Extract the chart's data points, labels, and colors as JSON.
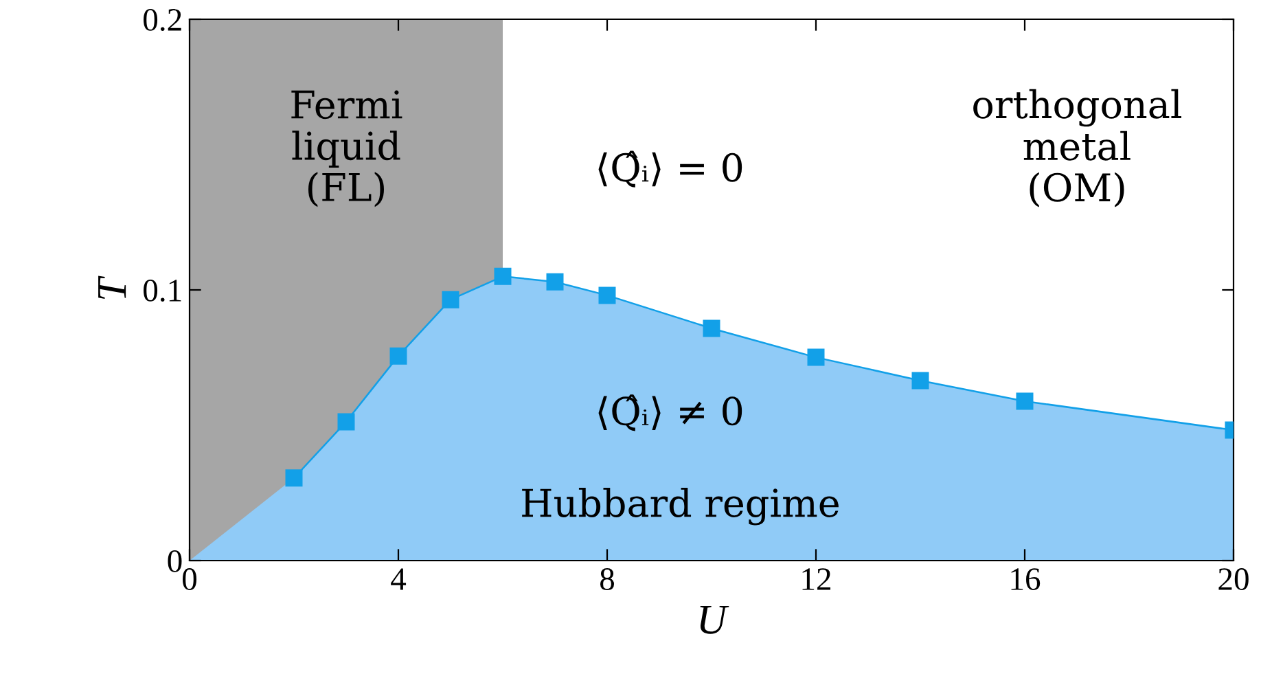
{
  "chart_data": {
    "type": "area",
    "xlabel": "U",
    "ylabel": "T",
    "series": [
      {
        "color": "#90cbf7",
        "x": [
          0,
          2,
          3,
          4,
          5,
          6,
          7,
          8,
          10,
          12,
          14,
          16,
          20
        ],
        "values": [
          0,
          0.0305,
          0.0513,
          0.0756,
          0.0964,
          0.105,
          0.103,
          0.098,
          0.0858,
          0.0751,
          0.0665,
          0.0589,
          0.0482
        ]
      },
      {
        "type": "scatter",
        "color": "#12a0e8",
        "marker": "square",
        "x": [
          2,
          3,
          4,
          5,
          6,
          7,
          8,
          10,
          12,
          14,
          16,
          20
        ],
        "values": [
          0.0305,
          0.0513,
          0.0756,
          0.0964,
          0.105,
          0.103,
          0.098,
          0.0858,
          0.0751,
          0.0665,
          0.0589,
          0.0482
        ]
      }
    ],
    "bands": [
      {
        "axis": "x",
        "from": 0,
        "to": 6,
        "color": "#a6a6a6"
      }
    ],
    "annotations": [
      "Fermi\nliquid\n(FL)",
      "⟨Q̂ᵢ⟩ = 0",
      "orthogonal\nmetal\n(OM)",
      "⟨Q̂ᵢ⟩ ≠ 0",
      "Hubbard regime"
    ],
    "xlim": [
      0,
      20
    ],
    "ylim": [
      0,
      0.2
    ],
    "xticks": [
      0,
      4,
      8,
      12,
      16,
      20
    ],
    "yticks": [
      0,
      0.1,
      0.2
    ],
    "grid": false,
    "legend": false
  }
}
